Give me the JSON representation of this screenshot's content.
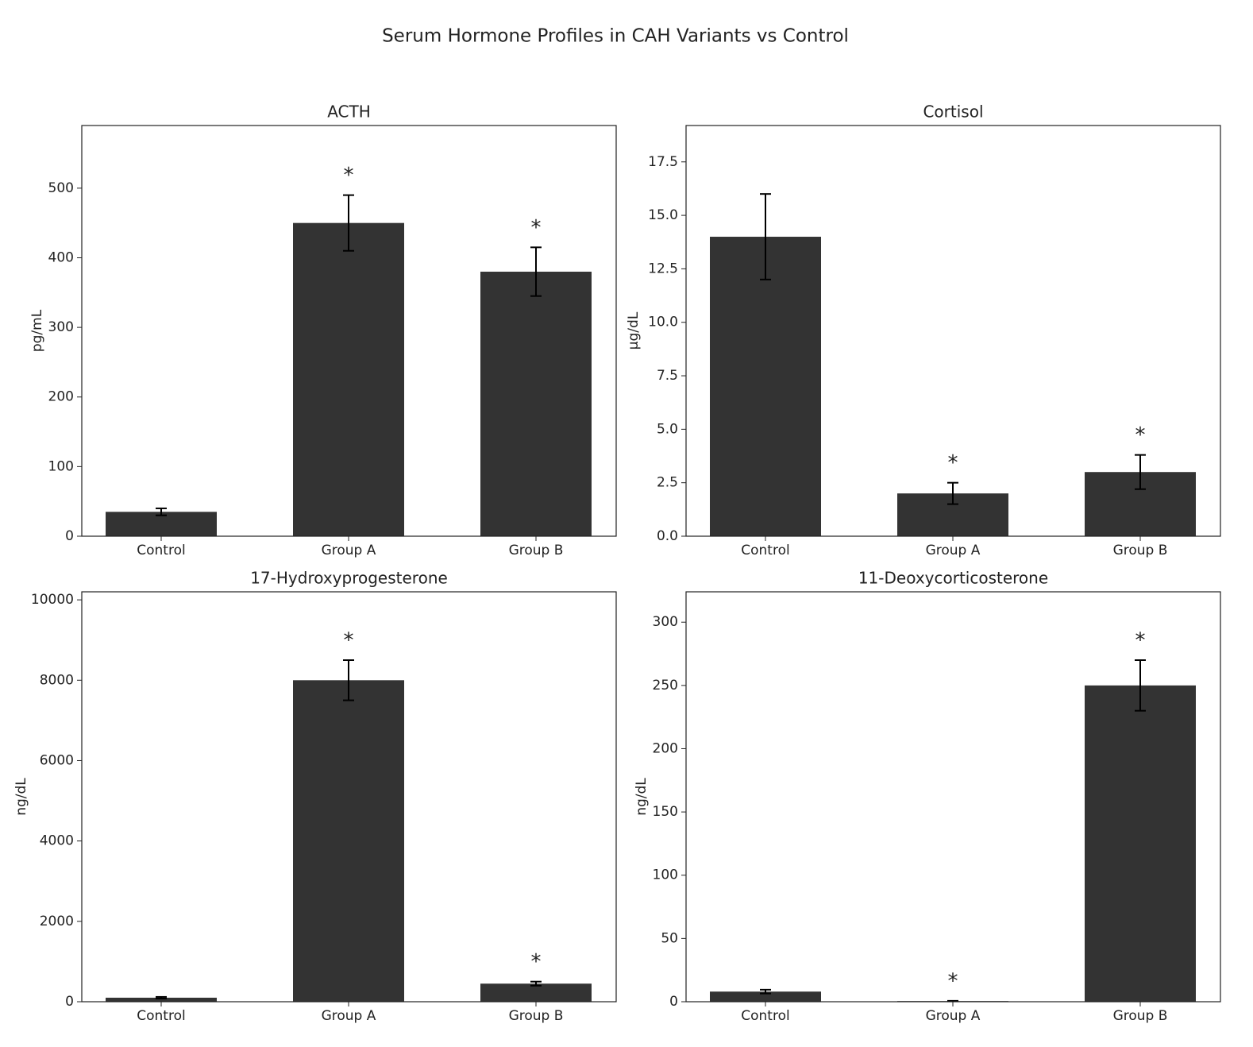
{
  "title": "Serum Hormone Profiles in CAH Variants vs Control",
  "chart_data": [
    {
      "type": "bar",
      "title": "ACTH",
      "ylabel": "pg/mL",
      "color": "#333333",
      "categories": [
        "Control",
        "Group A",
        "Group B"
      ],
      "values": [
        35,
        450,
        380
      ],
      "errors": [
        5,
        40,
        35
      ],
      "significance": [
        null,
        "*",
        "*"
      ],
      "ylim": [
        0,
        590
      ],
      "yticks": [
        0,
        100,
        200,
        300,
        400,
        500
      ]
    },
    {
      "type": "bar",
      "title": "Cortisol",
      "ylabel": "µg/dL",
      "color": "#333333",
      "categories": [
        "Control",
        "Group A",
        "Group B"
      ],
      "values": [
        14,
        2,
        3
      ],
      "errors": [
        2,
        0.5,
        0.8
      ],
      "significance": [
        null,
        "*",
        "*"
      ],
      "ylim": [
        0,
        19.2
      ],
      "yticks": [
        {
          "value": 0,
          "label": "0.0"
        },
        2.5,
        {
          "value": 5,
          "label": "5.0"
        },
        7.5,
        {
          "value": 10,
          "label": "10.0"
        },
        12.5,
        {
          "value": 15,
          "label": "15.0"
        },
        17.5
      ]
    },
    {
      "type": "bar",
      "title": "17-Hydroxyprogesterone",
      "ylabel": "ng/dL",
      "color": "#333333",
      "categories": [
        "Control",
        "Group A",
        "Group B"
      ],
      "values": [
        100,
        8000,
        450
      ],
      "errors": [
        20,
        500,
        50
      ],
      "significance": [
        null,
        "*",
        "*"
      ],
      "ylim": [
        0,
        10200
      ],
      "yticks": [
        0,
        2000,
        4000,
        6000,
        8000,
        10000
      ]
    },
    {
      "type": "bar",
      "title": "11-Deoxycorticosterone",
      "ylabel": "ng/dL",
      "color": "#333333",
      "categories": [
        "Control",
        "Group A",
        "Group B"
      ],
      "values": [
        8,
        0.5,
        250
      ],
      "errors": [
        1.5,
        0.2,
        20
      ],
      "significance": [
        null,
        "*",
        "*"
      ],
      "ylim": [
        0,
        324
      ],
      "yticks": [
        0,
        50,
        100,
        150,
        200,
        250,
        300
      ]
    }
  ]
}
